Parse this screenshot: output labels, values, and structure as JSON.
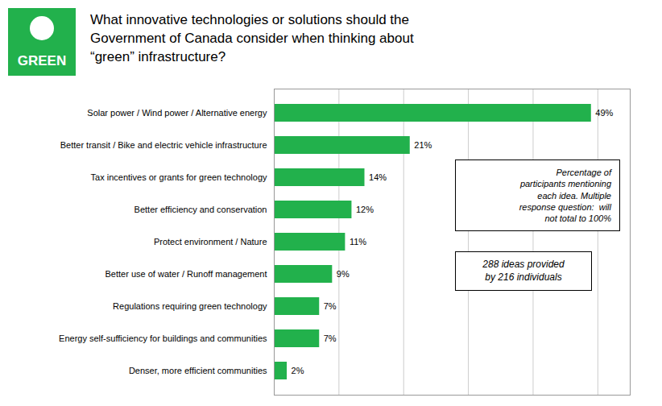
{
  "chart_data": {
    "type": "bar",
    "orientation": "horizontal",
    "title": "What innovative technologies or solutions should the\nGovernment of Canada consider when thinking about\n“green” infrastructure?",
    "annotations": [
      "GREEN",
      "Percentage of\nparticipants mentioning\neach idea. Multiple\nresponse question:  will\nnot total to 100%",
      "288 ideas provided\nby 216 individuals"
    ],
    "categories": [
      "Solar power / Wind power / Alternative energy",
      "Better transit / Bike and electric vehicle infrastructure",
      "Tax incentives or grants for green technology",
      "Better efficiency and conservation",
      "Protect environment / Nature",
      "Better use of water / Runoff management",
      "Regulations requiring green technology",
      "Energy self-sufficiency for buildings and communities",
      "Denser, more efficient communities"
    ],
    "values": [
      49,
      21,
      14,
      12,
      11,
      9,
      7,
      7,
      2
    ],
    "value_labels": [
      "49%",
      "21%",
      "14%",
      "12%",
      "11%",
      "9%",
      "7%",
      "7%",
      "2%"
    ],
    "color": "#22b14c",
    "xlim": [
      0,
      55
    ],
    "xticks": [
      0,
      10,
      20,
      30,
      40,
      50
    ],
    "grid": true,
    "data_labels": true,
    "tick_labels": "y"
  }
}
